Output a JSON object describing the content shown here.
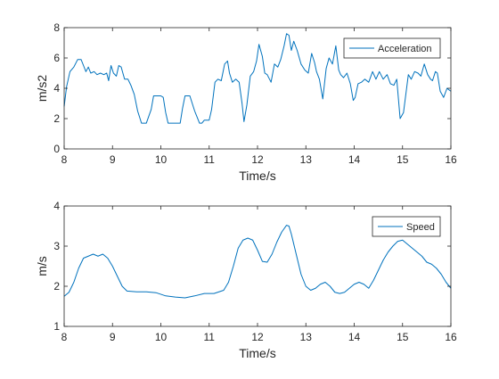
{
  "chart_data": [
    {
      "type": "line",
      "xlabel": "Time/s",
      "ylabel": "m/s2",
      "xlim": [
        8,
        16
      ],
      "ylim": [
        0,
        8
      ],
      "xticks": [
        8,
        9,
        10,
        11,
        12,
        13,
        14,
        15,
        16
      ],
      "yticks": [
        0,
        2,
        4,
        6,
        8
      ],
      "xtick_labels": [
        "8",
        "9",
        "10",
        "11",
        "12",
        "13",
        "14",
        "15",
        "16"
      ],
      "ytick_labels": [
        "0",
        "2",
        "4",
        "6",
        "8"
      ],
      "legend_position": "top-right",
      "line_color": "#0072BD",
      "series": [
        {
          "name": "Acceleration",
          "x": [
            8.0,
            8.05,
            8.12,
            8.2,
            8.28,
            8.35,
            8.4,
            8.45,
            8.5,
            8.55,
            8.62,
            8.68,
            8.75,
            8.82,
            8.88,
            8.92,
            8.97,
            9.02,
            9.08,
            9.13,
            9.18,
            9.25,
            9.32,
            9.38,
            9.45,
            9.52,
            9.6,
            9.7,
            9.8,
            9.85,
            9.92,
            10.0,
            10.05,
            10.1,
            10.15,
            10.2,
            10.3,
            10.4,
            10.45,
            10.5,
            10.55,
            10.6,
            10.7,
            10.8,
            10.85,
            10.9,
            11.0,
            11.05,
            11.12,
            11.18,
            11.25,
            11.32,
            11.38,
            11.42,
            11.48,
            11.55,
            11.62,
            11.68,
            11.72,
            11.78,
            11.85,
            11.92,
            11.98,
            12.03,
            12.1,
            12.15,
            12.2,
            12.28,
            12.35,
            12.42,
            12.48,
            12.55,
            12.6,
            12.65,
            12.7,
            12.75,
            12.82,
            12.9,
            12.98,
            13.05,
            13.12,
            13.18,
            13.22,
            13.28,
            13.35,
            13.42,
            13.48,
            13.55,
            13.62,
            13.68,
            13.72,
            13.78,
            13.85,
            13.92,
            13.98,
            14.02,
            14.08,
            14.15,
            14.22,
            14.3,
            14.38,
            14.45,
            14.52,
            14.6,
            14.68,
            14.75,
            14.82,
            14.88,
            14.95,
            15.02,
            15.08,
            15.12,
            15.18,
            15.25,
            15.32,
            15.38,
            15.45,
            15.52,
            15.58,
            15.62,
            15.68,
            15.72,
            15.78,
            15.85,
            15.92,
            16.0
          ],
          "y": [
            2.8,
            4.1,
            5.1,
            5.4,
            5.9,
            5.9,
            5.5,
            5.1,
            5.4,
            5.0,
            5.1,
            4.9,
            5.0,
            4.9,
            5.0,
            4.5,
            5.5,
            5.0,
            4.8,
            5.5,
            5.4,
            4.6,
            4.6,
            4.2,
            3.6,
            2.5,
            1.7,
            1.7,
            2.6,
            3.5,
            3.5,
            3.5,
            3.4,
            2.4,
            1.7,
            1.7,
            1.7,
            1.7,
            2.7,
            3.5,
            3.5,
            3.5,
            2.5,
            1.7,
            1.7,
            1.9,
            1.9,
            2.6,
            4.4,
            4.6,
            4.5,
            5.6,
            5.8,
            5.0,
            4.4,
            4.6,
            4.4,
            3.0,
            1.8,
            2.9,
            4.8,
            5.1,
            5.8,
            6.9,
            6.1,
            5.0,
            4.9,
            4.4,
            5.6,
            5.4,
            5.9,
            6.8,
            7.6,
            7.5,
            6.5,
            7.1,
            6.5,
            5.6,
            5.2,
            5.0,
            6.3,
            5.7,
            5.1,
            4.6,
            3.3,
            5.3,
            6.0,
            5.6,
            6.8,
            5.2,
            4.9,
            4.7,
            5.0,
            4.3,
            3.2,
            3.4,
            4.3,
            4.4,
            4.6,
            4.4,
            5.1,
            4.6,
            5.1,
            4.6,
            4.9,
            4.3,
            4.2,
            4.6,
            2.0,
            2.4,
            3.9,
            4.9,
            4.6,
            5.1,
            5.0,
            4.8,
            5.6,
            4.9,
            4.6,
            4.5,
            5.1,
            5.0,
            3.8,
            3.4,
            4.0,
            3.8
          ]
        }
      ]
    },
    {
      "type": "line",
      "xlabel": "Time/s",
      "ylabel": "m/s",
      "xlim": [
        8,
        16
      ],
      "ylim": [
        1,
        4
      ],
      "xticks": [
        8,
        9,
        10,
        11,
        12,
        13,
        14,
        15,
        16
      ],
      "yticks": [
        1,
        2,
        3,
        4
      ],
      "xtick_labels": [
        "8",
        "9",
        "10",
        "11",
        "12",
        "13",
        "14",
        "15",
        "16"
      ],
      "ytick_labels": [
        "1",
        "2",
        "3",
        "4"
      ],
      "legend_position": "top-right",
      "line_color": "#0072BD",
      "series": [
        {
          "name": "Speed",
          "x": [
            8.0,
            8.1,
            8.2,
            8.3,
            8.4,
            8.5,
            8.6,
            8.7,
            8.8,
            8.9,
            9.0,
            9.1,
            9.2,
            9.3,
            9.5,
            9.7,
            9.9,
            10.1,
            10.3,
            10.5,
            10.7,
            10.9,
            11.1,
            11.3,
            11.4,
            11.5,
            11.6,
            11.7,
            11.8,
            11.9,
            12.0,
            12.1,
            12.2,
            12.3,
            12.4,
            12.5,
            12.6,
            12.65,
            12.7,
            12.8,
            12.9,
            13.0,
            13.1,
            13.2,
            13.3,
            13.4,
            13.5,
            13.6,
            13.7,
            13.8,
            13.9,
            14.0,
            14.1,
            14.2,
            14.3,
            14.4,
            14.5,
            14.6,
            14.7,
            14.8,
            14.9,
            15.0,
            15.1,
            15.2,
            15.3,
            15.4,
            15.5,
            15.6,
            15.7,
            15.8,
            15.9,
            16.0
          ],
          "y": [
            1.75,
            1.85,
            2.1,
            2.45,
            2.7,
            2.75,
            2.8,
            2.75,
            2.8,
            2.7,
            2.5,
            2.25,
            2.0,
            1.88,
            1.86,
            1.86,
            1.84,
            1.76,
            1.73,
            1.71,
            1.76,
            1.82,
            1.82,
            1.9,
            2.1,
            2.5,
            2.95,
            3.15,
            3.2,
            3.15,
            2.9,
            2.62,
            2.6,
            2.8,
            3.1,
            3.35,
            3.52,
            3.5,
            3.3,
            2.8,
            2.3,
            2.0,
            1.9,
            1.95,
            2.05,
            2.1,
            2.0,
            1.85,
            1.82,
            1.85,
            1.95,
            2.05,
            2.1,
            2.05,
            1.95,
            2.15,
            2.4,
            2.65,
            2.85,
            3.0,
            3.12,
            3.15,
            3.05,
            2.95,
            2.85,
            2.75,
            2.6,
            2.55,
            2.45,
            2.3,
            2.1,
            1.95
          ]
        }
      ]
    }
  ]
}
